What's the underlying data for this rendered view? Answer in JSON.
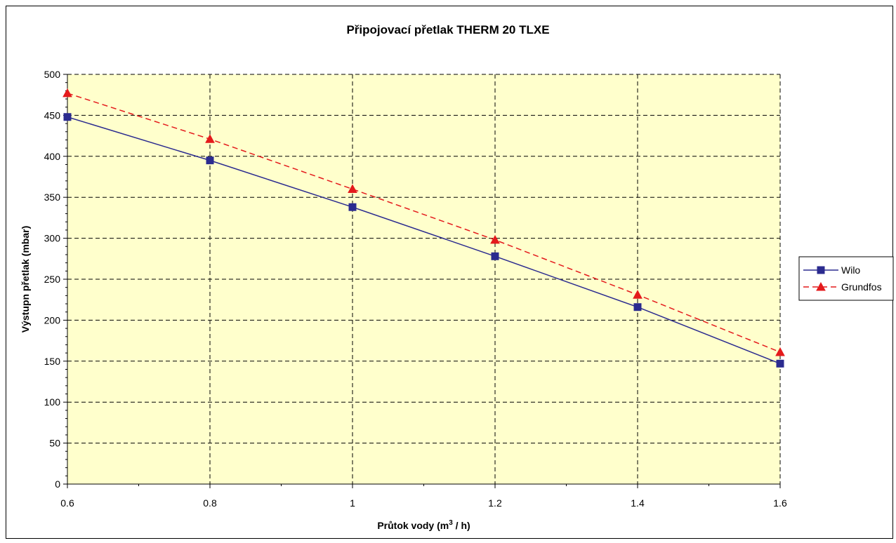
{
  "chart_data": {
    "type": "line",
    "title": "Připojovací přetlak THERM 20 TLXE",
    "xlabel_main": "Průtok vody (m",
    "xlabel_sup": "3",
    "xlabel_tail": " / h)",
    "ylabel": "Výstupn přetlak (mbar)",
    "x": [
      0.6,
      0.8,
      1.0,
      1.2,
      1.4,
      1.6
    ],
    "x_tick_labels": [
      "0.6",
      "0.8",
      "1",
      "1.2",
      "1.4",
      "1.6"
    ],
    "y_tick_labels": [
      "0",
      "50",
      "100",
      "150",
      "200",
      "250",
      "300",
      "350",
      "400",
      "450",
      "500"
    ],
    "xlim": [
      0.6,
      1.6
    ],
    "ylim": [
      0,
      500
    ],
    "grid": true,
    "legend_position": "right",
    "plot_background": "#FFFFCC",
    "series": [
      {
        "name": "Wilo",
        "values": [
          448,
          395,
          338,
          278,
          216,
          147
        ],
        "color": "#2B2B8F",
        "marker": "square",
        "line": "solid"
      },
      {
        "name": "Grundfos",
        "values": [
          477,
          421,
          360,
          298,
          231,
          161
        ],
        "color": "#E41A1C",
        "marker": "triangle",
        "line": "dashed"
      }
    ]
  }
}
